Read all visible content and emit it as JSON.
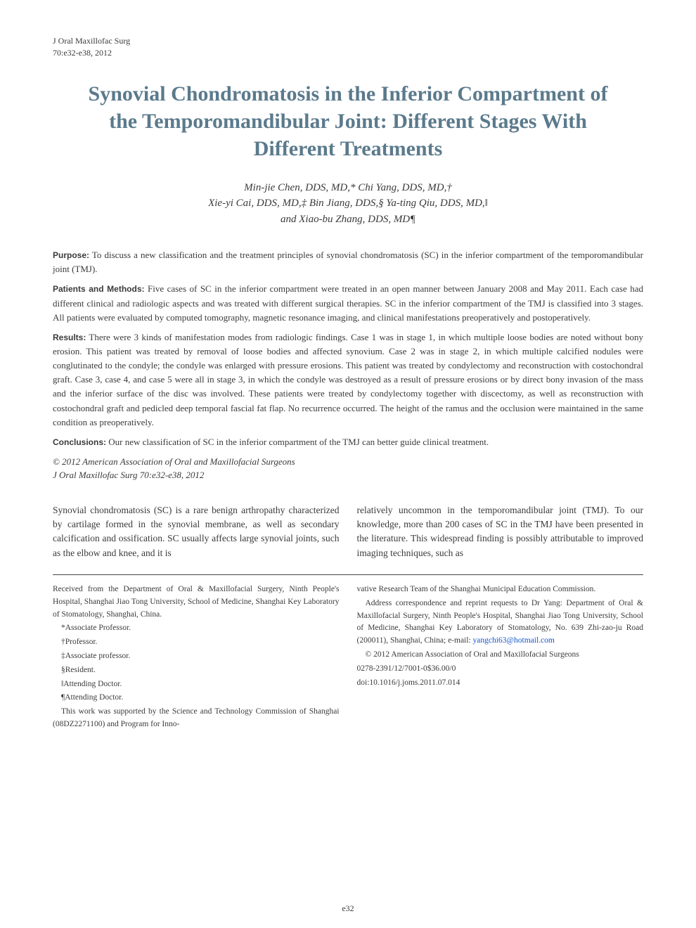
{
  "journal": {
    "name": "J Oral Maxillofac Surg",
    "citation": "70:e32-e38, 2012"
  },
  "title": "Synovial Chondromatosis in the Inferior Compartment of the Temporomandibular Joint: Different Stages With Different Treatments",
  "authors_line1": "Min-jie Chen, DDS, MD,* Chi Yang, DDS, MD,†",
  "authors_line2": "Xie-yi Cai, DDS, MD,‡ Bin Jiang, DDS,§ Ya-ting Qiu, DDS, MD,‖",
  "authors_line3": "and Xiao-bu Zhang, DDS, MD¶",
  "abstract": {
    "purpose_label": "Purpose:",
    "purpose": "To discuss a new classification and the treatment principles of synovial chondromatosis (SC) in the inferior compartment of the temporomandibular joint (TMJ).",
    "methods_label": "Patients and Methods:",
    "methods": "Five cases of SC in the inferior compartment were treated in an open manner between January 2008 and May 2011. Each case had different clinical and radiologic aspects and was treated with different surgical therapies. SC in the inferior compartment of the TMJ is classified into 3 stages. All patients were evaluated by computed tomography, magnetic resonance imaging, and clinical manifestations preoperatively and postoperatively.",
    "results_label": "Results:",
    "results": "There were 3 kinds of manifestation modes from radiologic findings. Case 1 was in stage 1, in which multiple loose bodies are noted without bony erosion. This patient was treated by removal of loose bodies and affected synovium. Case 2 was in stage 2, in which multiple calcified nodules were conglutinated to the condyle; the condyle was enlarged with pressure erosions. This patient was treated by condylectomy and reconstruction with costochondral graft. Case 3, case 4, and case 5 were all in stage 3, in which the condyle was destroyed as a result of pressure erosions or by direct bony invasion of the mass and the inferior surface of the disc was involved. These patients were treated by condylectomy together with discectomy, as well as reconstruction with costochondral graft and pedicled deep temporal fascial fat flap. No recurrence occurred. The height of the ramus and the occlusion were maintained in the same condition as preoperatively.",
    "conclusions_label": "Conclusions:",
    "conclusions": "Our new classification of SC in the inferior compartment of the TMJ can better guide clinical treatment."
  },
  "copyright": {
    "line1": "© 2012 American Association of Oral and Maxillofacial Surgeons",
    "line2": "J Oral Maxillofac Surg 70:e32-e38, 2012"
  },
  "body": {
    "col1": "Synovial chondromatosis (SC) is a rare benign arthropathy characterized by cartilage formed in the synovial membrane, as well as secondary calcification and ossification. SC usually affects large synovial joints, such as the elbow and knee, and it is",
    "col2": "relatively uncommon in the temporomandibular joint (TMJ). To our knowledge, more than 200 cases of SC in the TMJ have been presented in the literature. This widespread finding is possibly attributable to improved imaging techniques, such as"
  },
  "footer": {
    "affiliation": "Received from the Department of Oral & Maxillofacial Surgery, Ninth People's Hospital, Shanghai Jiao Tong University, School of Medicine, Shanghai Key Laboratory of Stomatology, Shanghai, China.",
    "notes": [
      "*Associate Professor.",
      "†Professor.",
      "‡Associate professor.",
      "§Resident.",
      "‖Attending Doctor.",
      "¶Attending Doctor."
    ],
    "funding": "This work was supported by the Science and Technology Commission of Shanghai (08DZ2271100) and Program for Inno-",
    "col2_top": "vative Research Team of the Shanghai Municipal Education Commission.",
    "correspondence": "Address correspondence and reprint requests to Dr Yang: Department of Oral & Maxillofacial Surgery, Ninth People's Hospital, Shanghai Jiao Tong University, School of Medicine, Shanghai Key Laboratory of Stomatology, No. 639 Zhi-zao-ju Road (200011), Shanghai, China; e-mail: ",
    "email": "yangchi63@hotmail.com",
    "copyright2": "© 2012 American Association of Oral and Maxillofacial Surgeons",
    "issn": "0278-2391/12/7001-0$36.00/0",
    "doi": "doi:10.1016/j.joms.2011.07.014"
  },
  "page_number": "e32",
  "colors": {
    "title": "#5b7a8c",
    "text": "#3a3a3a",
    "link": "#1155cc",
    "background": "#ffffff"
  },
  "typography": {
    "title_fontsize": 30,
    "author_fontsize": 15,
    "abstract_fontsize": 13,
    "body_fontsize": 13.5,
    "footer_fontsize": 11.5
  }
}
